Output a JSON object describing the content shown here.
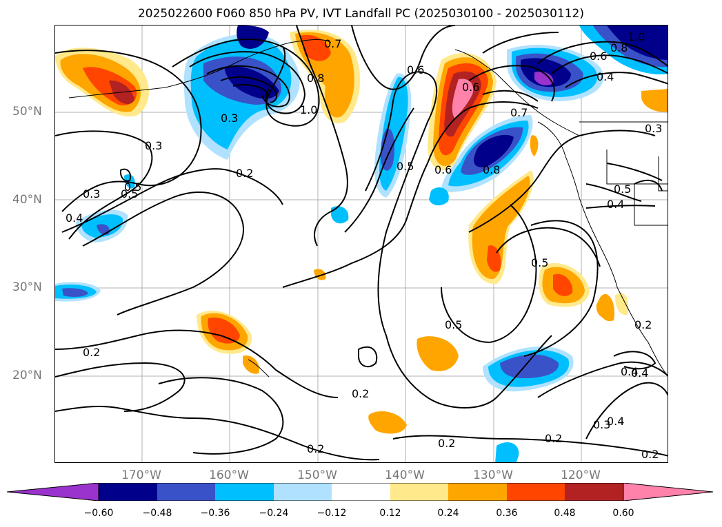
{
  "title": "2025022600 F060 850 hPa PV, IVT Landfall PC (2025030100 - 2025030112)",
  "lat_labels": [
    "50°N",
    "40°N",
    "30°N",
    "20°N"
  ],
  "lon_labels": [
    "170°W",
    "160°W",
    "150°W",
    "140°W",
    "130°W",
    "120°W"
  ],
  "colorbar": {
    "ticks": [
      "−0.60",
      "−0.48",
      "−0.36",
      "−0.24",
      "−0.12",
      "0.12",
      "0.24",
      "0.36",
      "0.48",
      "0.60"
    ],
    "colors": [
      "#9a32cd",
      "#00008b",
      "#3a52c8",
      "#00bfff",
      "#b0e2ff",
      "#ffffff",
      "#ffe98a",
      "#ffa500",
      "#ff4500",
      "#b22222",
      "#ff82ab"
    ]
  },
  "contour_labels": [
    "0.3",
    "0.3",
    "0.5",
    "0.4",
    "0.2",
    "0.3",
    "1.0",
    "0.8",
    "0.7",
    "0.6",
    "0.5",
    "0.6",
    "0.8",
    "0.7",
    "0.6",
    "0.5",
    "0.4",
    "0.5",
    "0.4",
    "0.5",
    "0.5",
    "0.2",
    "0.2",
    "0.2",
    "0.2",
    "0.2",
    "0.4",
    "0.3",
    "0.4",
    "0.2",
    "0.3",
    "0.2",
    "1.0",
    "0.8",
    "0.6",
    "0.4"
  ],
  "map": {
    "region": "North Pacific",
    "shading": "IVT landfall principal component",
    "contours": "850 hPa PV"
  }
}
